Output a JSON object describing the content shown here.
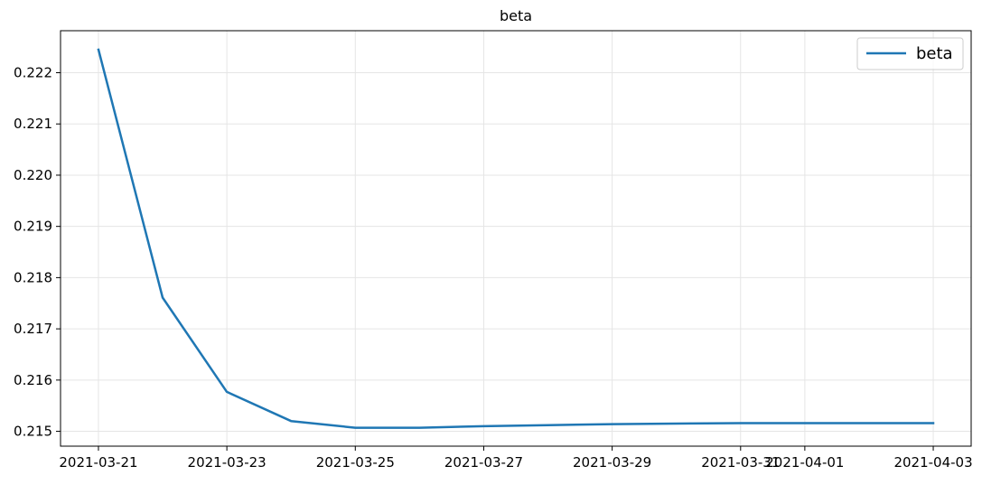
{
  "chart_data": {
    "type": "line",
    "title": "beta",
    "xlabel": "",
    "ylabel": "",
    "x_axis_type": "date",
    "x": [
      "2021-03-21",
      "2021-03-22",
      "2021-03-23",
      "2021-03-24",
      "2021-03-25",
      "2021-03-26",
      "2021-03-27",
      "2021-03-28",
      "2021-03-29",
      "2021-03-30",
      "2021-03-31",
      "2021-04-01",
      "2021-04-02",
      "2021-04-03"
    ],
    "series": [
      {
        "name": "beta",
        "color": "#1f77b4",
        "values": [
          0.22245,
          0.21761,
          0.21577,
          0.2152,
          0.21507,
          0.21507,
          0.2151,
          0.21512,
          0.21514,
          0.21515,
          0.21516,
          0.21516,
          0.21516,
          0.21516
        ]
      }
    ],
    "xlim": [
      "2021-03-20T09:50",
      "2021-04-03T14:10"
    ],
    "ylim": [
      0.21471,
      0.22282
    ],
    "xticks": [
      "2021-03-21",
      "2021-03-23",
      "2021-03-25",
      "2021-03-27",
      "2021-03-29",
      "2021-03-31",
      "2021-04-01",
      "2021-04-03"
    ],
    "yticks": [
      "0.215",
      "0.216",
      "0.217",
      "0.218",
      "0.219",
      "0.220",
      "0.221",
      "0.222"
    ],
    "grid": true,
    "legend": "top-right"
  }
}
